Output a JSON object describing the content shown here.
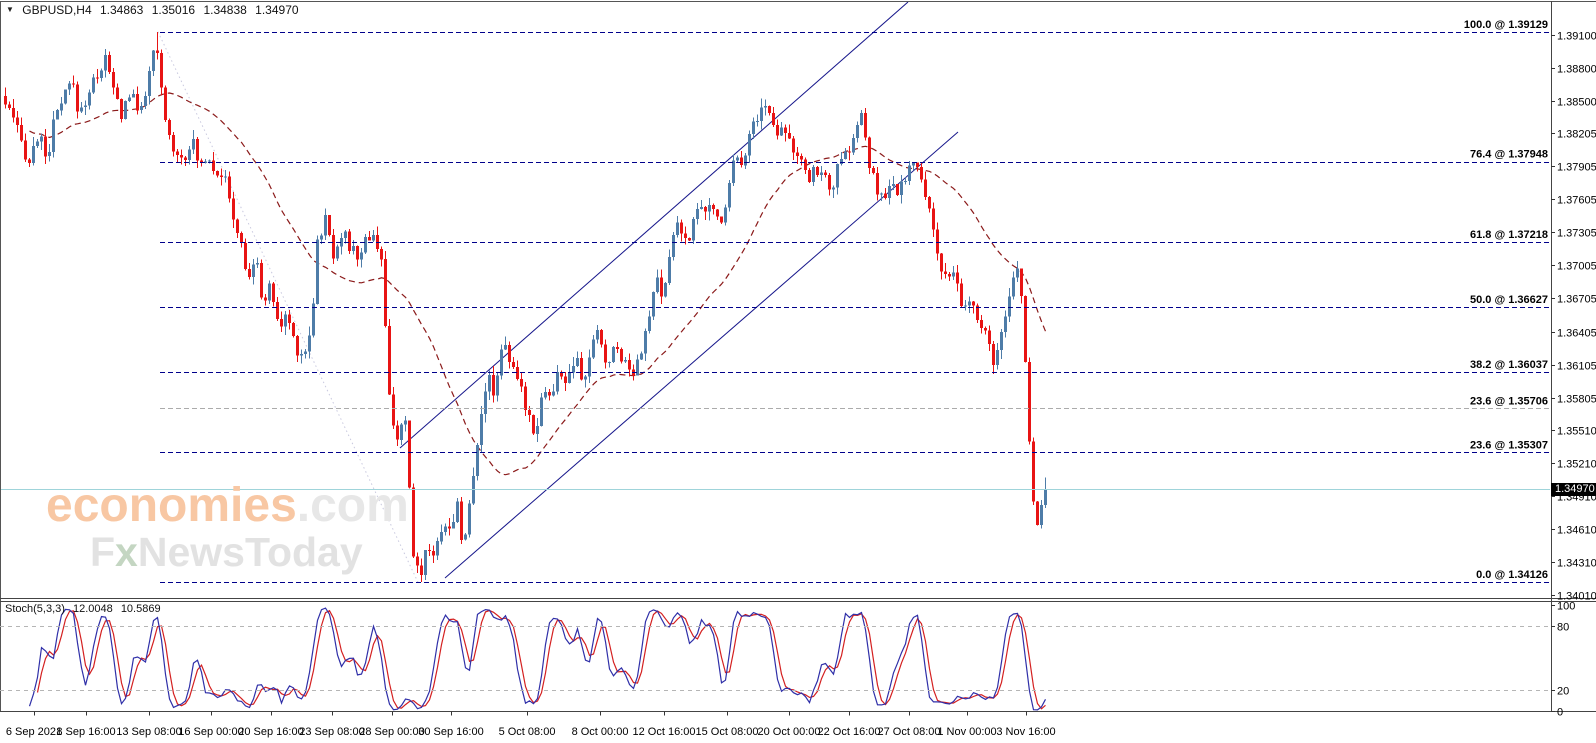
{
  "header": {
    "symbol": "GBPUSD,H4",
    "open": "1.34863",
    "high": "1.35016",
    "low": "1.34838",
    "close": "1.34970"
  },
  "watermark": {
    "brand": "economies",
    "brand_suffix": ".com",
    "tagline_prefix": "F",
    "tagline_x": "x",
    "tagline_rest": "NewsToday"
  },
  "stoch": {
    "label": "Stoch(5,3,3)",
    "k_value": "12.0048",
    "d_value": "10.5869",
    "scale_ticks": [
      100,
      80,
      20,
      0
    ],
    "dashed_levels": [
      80,
      20
    ],
    "range": [
      0,
      100
    ]
  },
  "colors": {
    "bear": "#E81414",
    "bull": "#4E7CA8",
    "ma": "#8B1A1A",
    "fib": "#00008B",
    "fib_muted": "#ABABAB",
    "channel": "#16168B",
    "fib_anchor_dotted": "#C9C9DF",
    "current_line": "#9FD4DA",
    "stoch_main": "#2F2FA8",
    "stoch_signal": "#D42020",
    "grid_dash": "#B5B5B5",
    "tag_bg": "#000000",
    "tag_fg": "#FFFFFF"
  },
  "chart_data": {
    "type": "candlestick",
    "symbol": "GBPUSD",
    "timeframe": "H4",
    "current_price": "1.34970",
    "ohlc": {
      "open": 1.34863,
      "high": 1.35016,
      "low": 1.34838,
      "close": 1.3497
    },
    "y_ticks": [
      "1.39100",
      "1.38800",
      "1.38500",
      "1.38205",
      "1.37905",
      "1.37605",
      "1.37305",
      "1.37005",
      "1.36705",
      "1.36405",
      "1.36105",
      "1.35805",
      "1.35510",
      "1.35210",
      "1.34910",
      "1.34610",
      "1.34310",
      "1.34010"
    ],
    "x_ticks": [
      "6 Sep 2021",
      "8 Sep 16:00",
      "13 Sep 08:00",
      "16 Sep 00:00",
      "20 Sep 16:00",
      "23 Sep 08:00",
      "28 Sep 00:00",
      "30 Sep 16:00",
      "5 Oct 08:00",
      "8 Oct 00:00",
      "12 Oct 16:00",
      "15 Oct 08:00",
      "20 Oct 00:00",
      "22 Oct 16:00",
      "27 Oct 08:00",
      "1 Nov 00:00",
      "3 Nov 16:00"
    ],
    "fib_levels": [
      {
        "label": "100.0 @ 1.39129",
        "price": 1.39129,
        "muted": false
      },
      {
        "label": "76.4 @ 1.37948",
        "price": 1.37948,
        "muted": false
      },
      {
        "label": "61.8 @ 1.37218",
        "price": 1.37218,
        "muted": false
      },
      {
        "label": "50.0 @ 1.36627",
        "price": 1.36627,
        "muted": false
      },
      {
        "label": "38.2 @ 1.36037",
        "price": 1.36037,
        "muted": false
      },
      {
        "label": "23.6 @ 1.35706",
        "price": 1.35706,
        "muted": true
      },
      {
        "label": "23.6 @ 1.35307",
        "price": 1.35307,
        "muted": false
      },
      {
        "label": "0.0 @ 1.34126",
        "price": 1.34126,
        "muted": false
      }
    ],
    "fib_anchor": {
      "t1": 158,
      "p1": 1.39129,
      "t2": 418,
      "p2": 1.34126
    },
    "channel_lines": [
      {
        "t1": 400,
        "p1": 1.35346,
        "t2": 908,
        "p2": 1.394
      },
      {
        "t1": 445,
        "p1": 1.34165,
        "t2": 958,
        "p2": 1.38218
      }
    ],
    "bars": 261,
    "bar_spacing": 4,
    "ma_period": 30,
    "price_path": [
      [
        0,
        1.3858
      ],
      [
        10,
        1.384
      ],
      [
        22,
        1.3812
      ],
      [
        30,
        1.3795
      ],
      [
        38,
        1.3818
      ],
      [
        48,
        1.38
      ],
      [
        56,
        1.3835
      ],
      [
        64,
        1.385
      ],
      [
        72,
        1.3868
      ],
      [
        80,
        1.3838
      ],
      [
        88,
        1.3855
      ],
      [
        98,
        1.3875
      ],
      [
        106,
        1.3888
      ],
      [
        114,
        1.386
      ],
      [
        122,
        1.3838
      ],
      [
        130,
        1.3858
      ],
      [
        138,
        1.3842
      ],
      [
        148,
        1.3862
      ],
      [
        156,
        1.3902
      ],
      [
        162,
        1.386
      ],
      [
        168,
        1.382
      ],
      [
        176,
        1.3806
      ],
      [
        184,
        1.3798
      ],
      [
        192,
        1.3816
      ],
      [
        200,
        1.379
      ],
      [
        208,
        1.3803
      ],
      [
        216,
        1.3788
      ],
      [
        224,
        1.3784
      ],
      [
        232,
        1.375
      ],
      [
        240,
        1.3726
      ],
      [
        248,
        1.3688
      ],
      [
        256,
        1.3706
      ],
      [
        264,
        1.3668
      ],
      [
        272,
        1.3681
      ],
      [
        280,
        1.3642
      ],
      [
        288,
        1.3656
      ],
      [
        296,
        1.3628
      ],
      [
        304,
        1.3618
      ],
      [
        312,
        1.3645
      ],
      [
        318,
        1.3722
      ],
      [
        326,
        1.3742
      ],
      [
        334,
        1.3712
      ],
      [
        342,
        1.3731
      ],
      [
        350,
        1.3718
      ],
      [
        358,
        1.3708
      ],
      [
        366,
        1.3723
      ],
      [
        374,
        1.3731
      ],
      [
        382,
        1.3705
      ],
      [
        390,
        1.3578
      ],
      [
        398,
        1.3545
      ],
      [
        406,
        1.3553
      ],
      [
        414,
        1.3438
      ],
      [
        420,
        1.3418
      ],
      [
        428,
        1.3448
      ],
      [
        436,
        1.3436
      ],
      [
        444,
        1.3473
      ],
      [
        452,
        1.3455
      ],
      [
        458,
        1.3489
      ],
      [
        464,
        1.3441
      ],
      [
        472,
        1.3493
      ],
      [
        480,
        1.3561
      ],
      [
        488,
        1.3598
      ],
      [
        496,
        1.3586
      ],
      [
        504,
        1.3641
      ],
      [
        512,
        1.3606
      ],
      [
        520,
        1.3591
      ],
      [
        528,
        1.3569
      ],
      [
        536,
        1.3549
      ],
      [
        544,
        1.3591
      ],
      [
        552,
        1.3579
      ],
      [
        560,
        1.3606
      ],
      [
        568,
        1.3593
      ],
      [
        576,
        1.3616
      ],
      [
        584,
        1.3589
      ],
      [
        592,
        1.3629
      ],
      [
        600,
        1.3639
      ],
      [
        608,
        1.3606
      ],
      [
        616,
        1.3629
      ],
      [
        624,
        1.3616
      ],
      [
        632,
        1.3603
      ],
      [
        640,
        1.3621
      ],
      [
        648,
        1.3641
      ],
      [
        656,
        1.3689
      ],
      [
        664,
        1.3666
      ],
      [
        672,
        1.3723
      ],
      [
        680,
        1.3743
      ],
      [
        688,
        1.3711
      ],
      [
        696,
        1.3761
      ],
      [
        704,
        1.3743
      ],
      [
        712,
        1.3756
      ],
      [
        720,
        1.3739
      ],
      [
        728,
        1.3763
      ],
      [
        736,
        1.3809
      ],
      [
        744,
        1.3793
      ],
      [
        752,
        1.3826
      ],
      [
        760,
        1.3841
      ],
      [
        768,
        1.3846
      ],
      [
        776,
        1.3821
      ],
      [
        784,
        1.3833
      ],
      [
        792,
        1.3809
      ],
      [
        800,
        1.3796
      ],
      [
        808,
        1.3776
      ],
      [
        816,
        1.3791
      ],
      [
        824,
        1.3781
      ],
      [
        832,
        1.3771
      ],
      [
        840,
        1.3791
      ],
      [
        848,
        1.3803
      ],
      [
        856,
        1.3819
      ],
      [
        862,
        1.3841
      ],
      [
        868,
        1.3796
      ],
      [
        876,
        1.3773
      ],
      [
        884,
        1.3759
      ],
      [
        892,
        1.3771
      ],
      [
        900,
        1.3766
      ],
      [
        908,
        1.3789
      ],
      [
        916,
        1.3793
      ],
      [
        924,
        1.3769
      ],
      [
        932,
        1.3749
      ],
      [
        940,
        1.3701
      ],
      [
        948,
        1.3683
      ],
      [
        956,
        1.3691
      ],
      [
        964,
        1.3656
      ],
      [
        972,
        1.3671
      ],
      [
        980,
        1.3643
      ],
      [
        988,
        1.3633
      ],
      [
        996,
        1.3611
      ],
      [
        1004,
        1.3641
      ],
      [
        1012,
        1.3681
      ],
      [
        1018,
        1.3699
      ],
      [
        1024,
        1.3656
      ],
      [
        1030,
        1.3541
      ],
      [
        1036,
        1.3463
      ],
      [
        1042,
        1.3483
      ],
      [
        1047,
        1.3497
      ]
    ]
  }
}
